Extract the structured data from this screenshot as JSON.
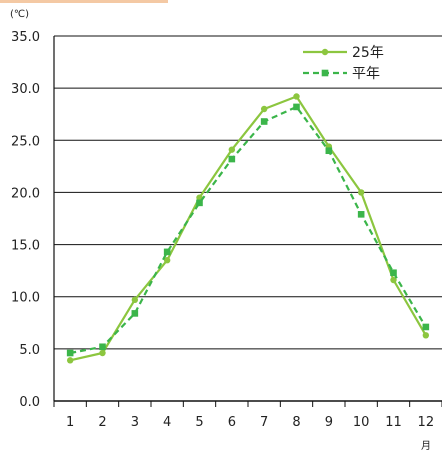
{
  "header_accent_color": "#f4c9a4",
  "chart_data": {
    "type": "line",
    "title": "",
    "ylabel": "(℃)",
    "xlabel": "月",
    "categories": [
      "1",
      "2",
      "3",
      "4",
      "5",
      "6",
      "7",
      "8",
      "9",
      "10",
      "11",
      "12"
    ],
    "ylim": [
      0,
      35
    ],
    "ytick_labels": [
      "0.0",
      "5.0",
      "10.0",
      "15.0",
      "20.0",
      "25.0",
      "30.0",
      "35.0"
    ],
    "grid": "horizontal",
    "legend_position": "top-right",
    "series": [
      {
        "name": "25年",
        "values": [
          3.9,
          4.6,
          9.7,
          13.5,
          19.5,
          24.1,
          28.0,
          29.2,
          24.4,
          20.0,
          11.6,
          6.3
        ],
        "color": "#8cc63f",
        "style": "solid",
        "marker": "circle"
      },
      {
        "name": "平年",
        "values": [
          4.6,
          5.2,
          8.4,
          14.3,
          19.0,
          23.2,
          26.8,
          28.2,
          24.0,
          17.9,
          12.3,
          7.1
        ],
        "color": "#3bb54a",
        "style": "dashed",
        "marker": "square"
      }
    ]
  }
}
